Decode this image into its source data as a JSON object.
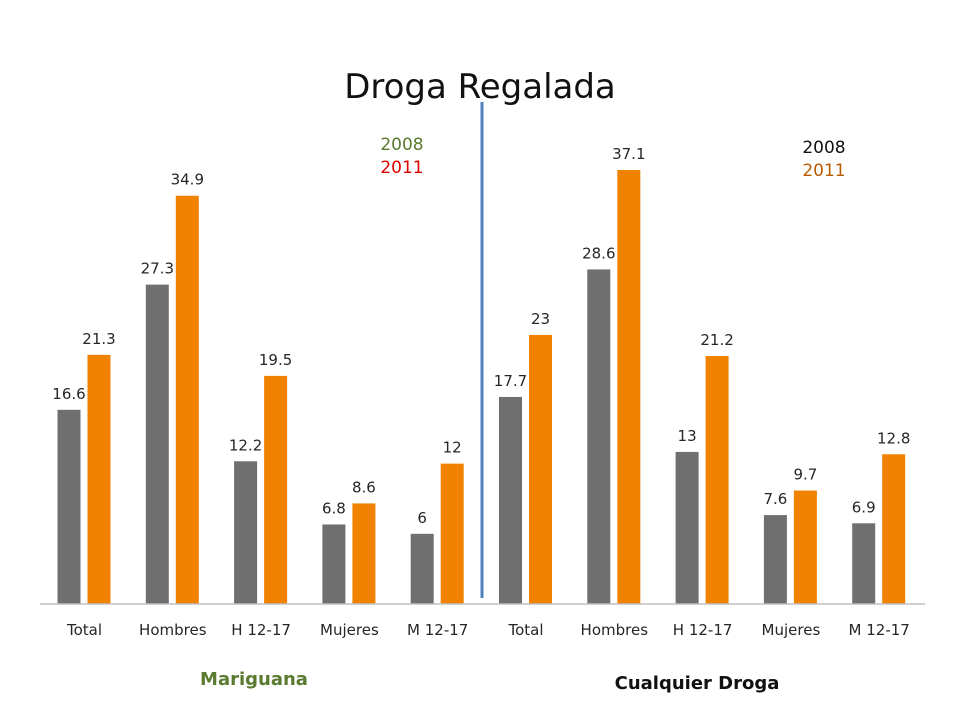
{
  "chart_data": {
    "type": "bar",
    "title": "Droga Regalada",
    "categories": [
      "Total",
      "Hombres",
      "H 12-17",
      "Mujeres",
      "M 12-17",
      "Total",
      "Hombres",
      "H 12-17",
      "Mujeres",
      "M 12-17"
    ],
    "series": [
      {
        "name": "2008",
        "values": [
          16.6,
          27.3,
          12.2,
          6.8,
          6,
          17.7,
          28.6,
          13,
          7.6,
          6.9
        ],
        "color": "#6f6f6f"
      },
      {
        "name": "2011",
        "values": [
          21.3,
          34.9,
          19.5,
          8.6,
          12,
          23,
          37.1,
          21.2,
          9.7,
          12.8
        ],
        "color": "#f08200"
      }
    ],
    "groups": [
      {
        "label": "Mariguana",
        "color": "#5a7a30",
        "legend": [
          {
            "text": "2008",
            "color": "#5a7a30"
          },
          {
            "text": "2011",
            "color": "#e00000"
          }
        ]
      },
      {
        "label": "Cualquier Droga",
        "color": "#111111",
        "legend": [
          {
            "text": "2008",
            "color": "#111111"
          },
          {
            "text": "2011",
            "color": "#b85c00"
          }
        ]
      }
    ],
    "ylim": [
      0,
      40
    ],
    "grid": false,
    "divider_color": "#4f81bd",
    "axis_color": "#bfbfbf"
  }
}
